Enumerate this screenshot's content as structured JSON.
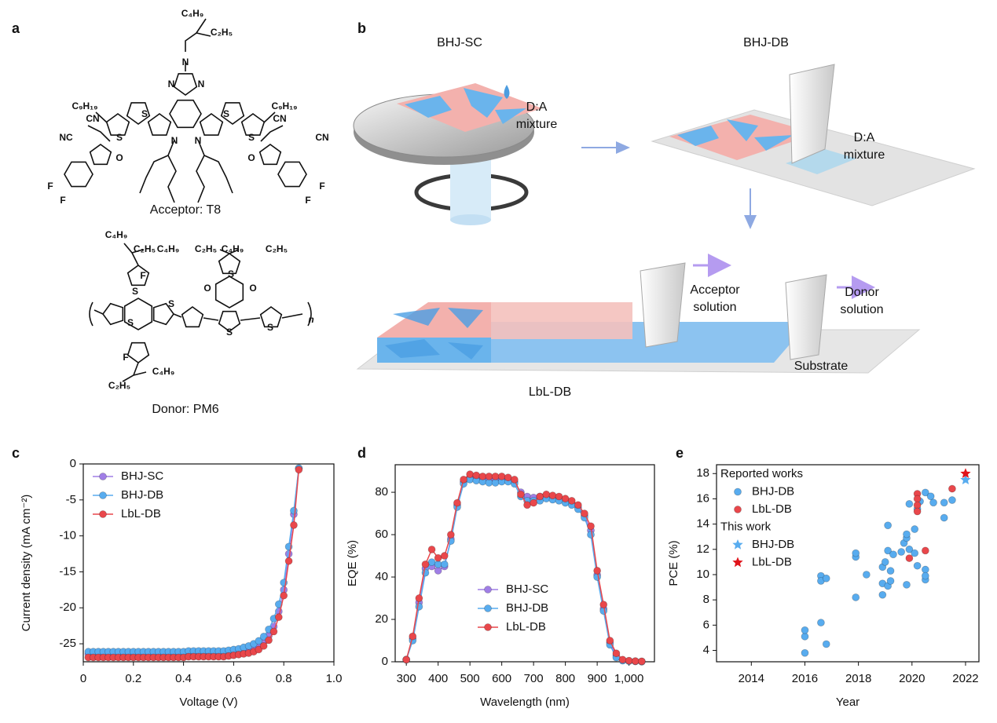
{
  "panel_a": {
    "label": "a",
    "acceptor": {
      "atoms": [
        "C₄H₉",
        "C₂H₅",
        "N",
        "N",
        "N",
        "C₉H₁₉",
        "C₉H₁₉",
        "CN",
        "NC",
        "CN",
        "CN",
        "O",
        "O",
        "F",
        "F",
        "F",
        "F",
        "S",
        "S",
        "S",
        "S",
        "N",
        "N"
      ],
      "name": "Acceptor: T8"
    },
    "donor": {
      "atoms": [
        "C₄H₉",
        "C₂H₅",
        "C₄H₉",
        "C₂H₅",
        "C₄H₉",
        "C₂H₅",
        "F",
        "S",
        "S",
        "O",
        "O",
        "S",
        "S",
        "S",
        "S",
        "F",
        "C₂H₅",
        "C₄H₉",
        "n"
      ],
      "name": "Donor: PM6"
    }
  },
  "panel_b": {
    "label": "b",
    "texts": [
      [
        "BHJ-SC"
      ],
      [
        "D:A",
        "mixture"
      ],
      [
        "BHJ-DB"
      ],
      [
        "D:A",
        "mixture"
      ],
      [
        "Acceptor",
        "solution"
      ],
      [
        "Donor",
        "solution"
      ],
      [
        "Substrate"
      ],
      [
        "LbL-DB"
      ]
    ]
  },
  "chart_data": [
    {
      "type": "line",
      "panel_label": "c",
      "xlabel": "Voltage (V)",
      "ylabel": "Current density (mA cm⁻²)",
      "xlim": [
        0,
        1
      ],
      "ylim": [
        -27.5,
        0
      ],
      "xticks": [
        0,
        0.2,
        0.4,
        0.6,
        0.8,
        {
          "value": 1,
          "label": "1.0"
        }
      ],
      "yticks": [
        0,
        -5,
        -10,
        -15,
        -20,
        -25
      ],
      "legend": "upper left",
      "x": [
        0.02,
        0.04,
        0.06,
        0.08,
        0.1,
        0.12,
        0.14,
        0.16,
        0.18,
        0.2,
        0.22,
        0.24,
        0.26,
        0.28,
        0.3,
        0.32,
        0.34,
        0.36,
        0.38,
        0.4,
        0.42,
        0.44,
        0.46,
        0.48,
        0.5,
        0.52,
        0.54,
        0.56,
        0.58,
        0.6,
        0.62,
        0.64,
        0.66,
        0.68,
        0.7,
        0.72,
        0.74,
        0.76,
        0.78,
        0.8,
        0.82,
        0.84,
        0.86
      ],
      "series": [
        {
          "name": "BHJ-SC",
          "color": "#a07ee6",
          "values": [
            -26.4,
            -26.4,
            -26.4,
            -26.4,
            -26.4,
            -26.4,
            -26.4,
            -26.4,
            -26.4,
            -26.4,
            -26.4,
            -26.4,
            -26.4,
            -26.4,
            -26.4,
            -26.4,
            -26.4,
            -26.4,
            -26.4,
            -26.4,
            -26.3,
            -26.3,
            -26.3,
            -26.3,
            -26.3,
            -26.3,
            -26.3,
            -26.3,
            -26.2,
            -26.1,
            -26.0,
            -25.9,
            -25.7,
            -25.5,
            -25.2,
            -24.7,
            -23.9,
            -22.6,
            -20.5,
            -17.5,
            -12.5,
            -7.0,
            -0.6
          ]
        },
        {
          "name": "BHJ-DB",
          "color": "#58acef",
          "values": [
            -26.1,
            -26.1,
            -26.1,
            -26.1,
            -26.1,
            -26.1,
            -26.1,
            -26.1,
            -26.1,
            -26.1,
            -26.1,
            -26.1,
            -26.1,
            -26.1,
            -26.1,
            -26.1,
            -26.1,
            -26.1,
            -26.1,
            -26.1,
            -26.0,
            -26.0,
            -26.0,
            -26.0,
            -26.0,
            -26.0,
            -26.0,
            -26.0,
            -25.9,
            -25.8,
            -25.7,
            -25.5,
            -25.3,
            -25.0,
            -24.6,
            -24.0,
            -23.0,
            -21.5,
            -19.5,
            -16.5,
            -11.5,
            -6.5,
            -0.6
          ]
        },
        {
          "name": "LbL-DB",
          "color": "#e9474b",
          "values": [
            -26.9,
            -26.9,
            -26.9,
            -26.9,
            -26.9,
            -26.9,
            -26.9,
            -26.9,
            -26.9,
            -26.9,
            -26.9,
            -26.9,
            -26.9,
            -26.9,
            -26.9,
            -26.9,
            -26.9,
            -26.9,
            -26.9,
            -26.9,
            -26.8,
            -26.8,
            -26.8,
            -26.8,
            -26.8,
            -26.8,
            -26.8,
            -26.8,
            -26.7,
            -26.6,
            -26.5,
            -26.4,
            -26.3,
            -26.1,
            -25.8,
            -25.3,
            -24.5,
            -23.3,
            -21.3,
            -18.3,
            -13.5,
            -8.5,
            -0.8
          ]
        }
      ]
    },
    {
      "type": "line",
      "panel_label": "d",
      "xlabel": "Wavelength (nm)",
      "ylabel": "EQE (%)",
      "xlim": [
        265,
        1080
      ],
      "ylim": [
        0,
        93
      ],
      "xticks": [
        300,
        400,
        500,
        600,
        700,
        800,
        900,
        {
          "value": 1000,
          "label": "1,000"
        }
      ],
      "yticks": [
        0,
        20,
        40,
        60,
        80
      ],
      "legend": "lower center",
      "x": [
        300,
        320,
        340,
        360,
        380,
        400,
        420,
        440,
        460,
        480,
        500,
        520,
        540,
        560,
        580,
        600,
        620,
        640,
        660,
        680,
        700,
        720,
        740,
        760,
        780,
        800,
        820,
        840,
        860,
        880,
        900,
        920,
        940,
        960,
        980,
        1000,
        1020,
        1040
      ],
      "series": [
        {
          "name": "BHJ-SC",
          "color": "#a07ee6",
          "values": [
            1,
            11,
            28,
            44,
            45,
            43,
            45,
            58,
            74,
            85,
            87,
            86.5,
            86,
            86,
            86,
            86,
            86,
            85,
            80,
            78,
            77.5,
            78,
            78.5,
            77.5,
            77,
            76,
            75,
            73,
            69,
            62,
            41,
            25,
            9,
            3,
            0.8,
            0.4,
            0.2,
            0.1
          ]
        },
        {
          "name": "BHJ-DB",
          "color": "#58acef",
          "values": [
            1,
            10,
            26,
            42,
            47,
            46,
            46,
            57,
            73,
            84,
            86,
            85.5,
            85,
            84.5,
            84.5,
            85,
            85,
            84,
            78,
            76,
            76,
            76,
            77,
            76.5,
            76,
            75,
            74,
            72,
            68,
            60,
            40,
            24,
            8,
            2,
            0.5,
            0.3,
            0.2,
            0.1
          ]
        },
        {
          "name": "LbL-DB",
          "color": "#e9474b",
          "values": [
            1,
            12,
            30,
            46,
            53,
            49,
            50,
            60,
            75,
            86,
            88.5,
            88,
            87.5,
            87.5,
            87.5,
            87.5,
            87,
            86,
            79,
            74,
            75,
            78,
            79,
            78.5,
            78,
            77,
            76,
            74,
            70,
            64,
            43,
            27,
            10,
            4,
            1,
            0.5,
            0.3,
            0.2
          ]
        }
      ]
    },
    {
      "type": "scatter",
      "panel_label": "e",
      "xlabel": "Year",
      "ylabel": "PCE (%)",
      "xlim": [
        2012.7,
        2022.5
      ],
      "ylim": [
        3.1,
        18.7
      ],
      "xticks": [
        2014,
        2016,
        2018,
        2020,
        2022
      ],
      "yticks": [
        4,
        6,
        8,
        10,
        12,
        14,
        16,
        18
      ],
      "legend": "upper left",
      "groups": [
        {
          "title": "Reported works",
          "series": [
            {
              "name": "BHJ-DB",
              "color": "#58acef",
              "marker": "circle",
              "x": [
                2016,
                2016,
                2016,
                2016.6,
                2016.6,
                2016.6,
                2016.8,
                2016.8,
                2017.9,
                2017.9,
                2017.9,
                2018.3,
                2018.9,
                2018.9,
                2018.9,
                2019,
                2019.1,
                2019.1,
                2019.1,
                2019.2,
                2019.2,
                2019.3,
                2019.6,
                2019.7,
                2019.8,
                2019.8,
                2019.8,
                2019.9,
                2019.9,
                2020.1,
                2020.1,
                2020.2,
                2020.2,
                2020.3,
                2020.5,
                2020.5,
                2020.5,
                2020.5,
                2020.7,
                2020.8,
                2021.2,
                2021.2,
                2021.5
              ],
              "values": [
                3.8,
                5.1,
                5.6,
                6.2,
                9.9,
                9.5,
                9.7,
                4.5,
                8.2,
                11.4,
                11.7,
                10.0,
                8.4,
                9.3,
                10.6,
                11.0,
                9.1,
                13.9,
                11.9,
                9.5,
                10.3,
                11.6,
                11.8,
                12.5,
                12.9,
                13.2,
                9.2,
                12.0,
                15.6,
                13.6,
                11.7,
                10.7,
                15.2,
                15.8,
                16.5,
                10.4,
                9.6,
                9.9,
                16.2,
                15.7,
                14.5,
                15.7,
                15.9
              ]
            },
            {
              "name": "LbL-DB",
              "color": "#e9474b",
              "marker": "circle",
              "x": [
                2019.9,
                2020.2,
                2020.2,
                2020.2,
                2020.2,
                2020.5,
                2021.5
              ],
              "values": [
                11.3,
                16.4,
                16.0,
                15.5,
                15.0,
                11.9,
                16.8
              ]
            }
          ]
        },
        {
          "title": "This work",
          "series": [
            {
              "name": "BHJ-DB",
              "color": "#58acef",
              "marker": "star",
              "x": [
                2022
              ],
              "values": [
                17.5
              ]
            },
            {
              "name": "LbL-DB",
              "color": "#e0141b",
              "marker": "star",
              "x": [
                2022
              ],
              "values": [
                18.0
              ]
            }
          ]
        }
      ]
    }
  ]
}
